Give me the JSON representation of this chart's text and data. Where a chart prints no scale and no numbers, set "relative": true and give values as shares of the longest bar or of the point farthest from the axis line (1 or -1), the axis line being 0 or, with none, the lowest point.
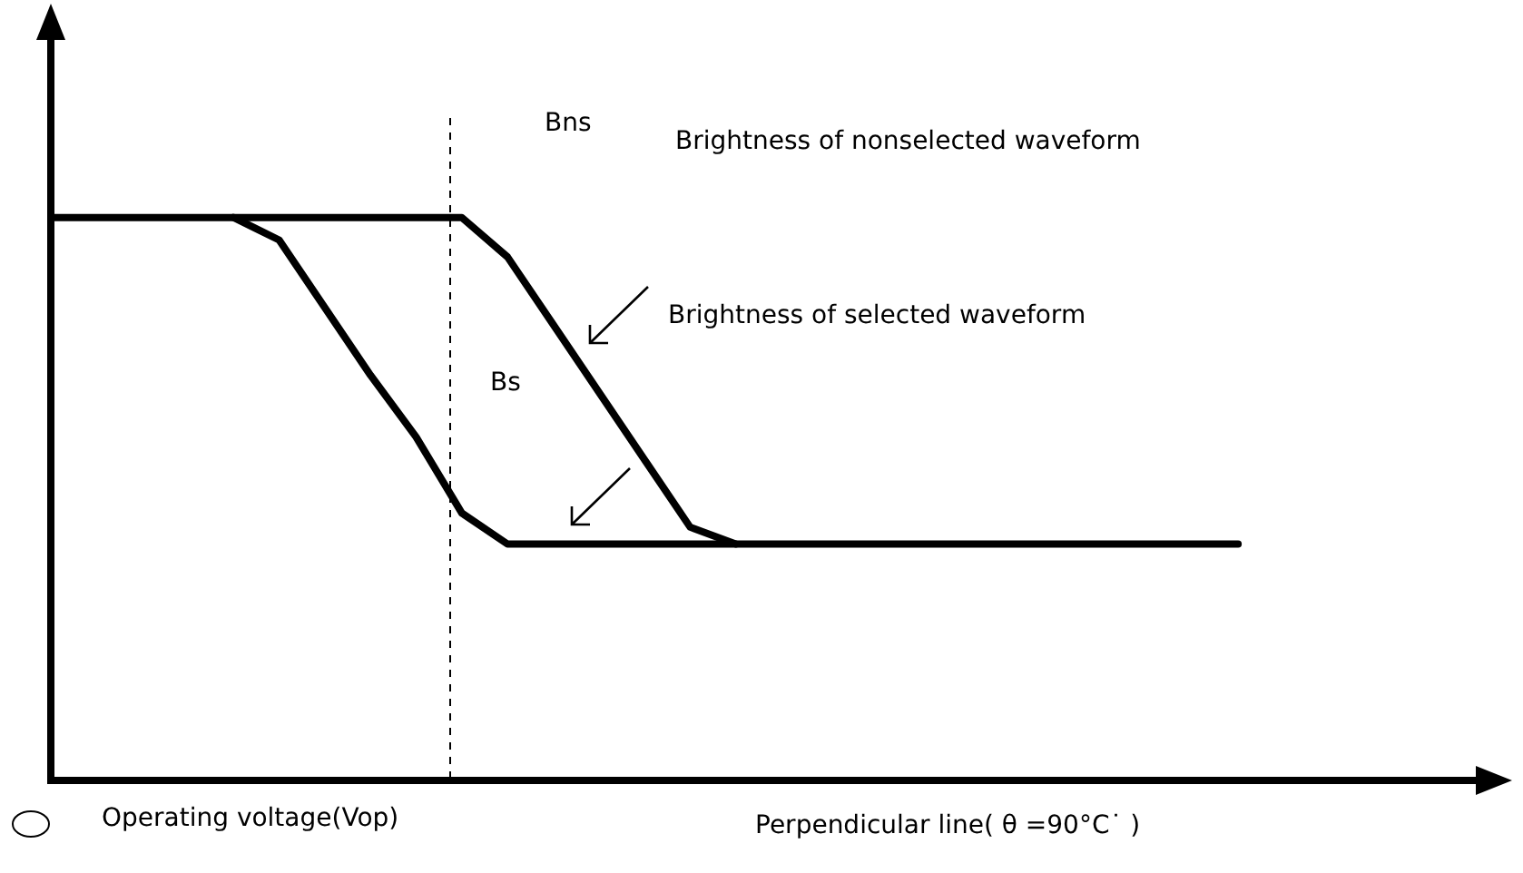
{
  "chart_data": {
    "type": "line",
    "relative": true,
    "legend": false,
    "marker": "none",
    "line_style": "solid",
    "categories": [
      null,
      null,
      null,
      null,
      null,
      null,
      null,
      null,
      null,
      null,
      null,
      null,
      null,
      null,
      null,
      null,
      null,
      null,
      null,
      null,
      null,
      null,
      null,
      null,
      null,
      null,
      null,
      null,
      null,
      null,
      null,
      null,
      null
    ],
    "series": [
      {
        "color": "#000000",
        "values": [
          1,
          1,
          1,
          1,
          1,
          1,
          1,
          1,
          1,
          1,
          0.93,
          0.81,
          0.69,
          0.57,
          0.45,
          0.42,
          null,
          null,
          null,
          null,
          null,
          null,
          null,
          null,
          null,
          null,
          null,
          null,
          null,
          null,
          null,
          null,
          null
        ]
      },
      {
        "color": "#000000",
        "values": [
          null,
          null,
          null,
          null,
          1,
          0.96,
          0.84,
          0.72,
          0.61,
          0.475,
          0.42,
          0.42,
          0.42,
          0.42,
          0.42,
          0.42,
          0.42,
          0.42,
          0.42,
          0.42,
          0.42,
          0.42,
          0.42,
          0.42,
          0.42,
          0.42,
          0.42,
          null,
          null,
          null,
          null,
          null,
          null
        ]
      }
    ],
    "annotations": [
      "Bns",
      "Bs",
      "Brightness of nonselected waveform",
      "Brightness of selected waveform",
      "Operating voltage(Vop)",
      "Perpendicular line( θ =90°C˙ )"
    ]
  }
}
